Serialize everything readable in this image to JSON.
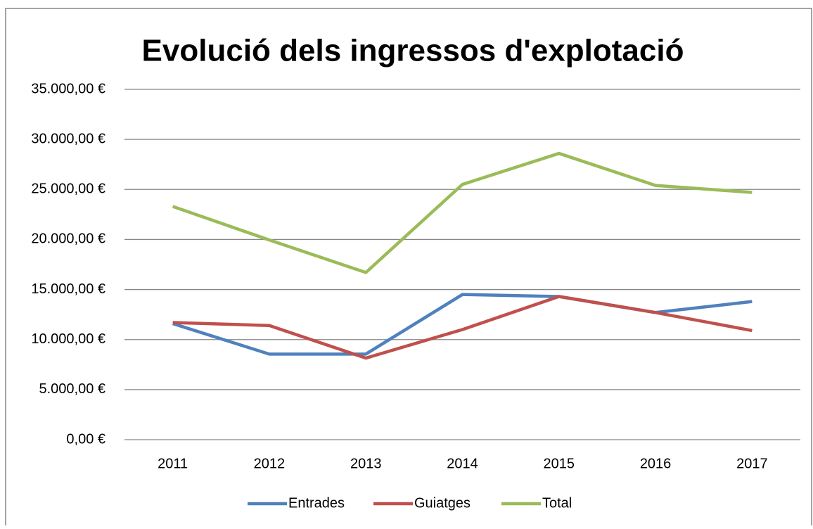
{
  "chart_data": {
    "type": "line",
    "title": "Evolució dels ingressos d'explotació",
    "categories": [
      "2011",
      "2012",
      "2013",
      "2014",
      "2015",
      "2016",
      "2017"
    ],
    "series": [
      {
        "name": "Entrades",
        "color": "#4f81bd",
        "values": [
          11600,
          8550,
          8550,
          14500,
          14300,
          12700,
          13800
        ]
      },
      {
        "name": "Guiatges",
        "color": "#c0504d",
        "values": [
          11700,
          11400,
          8150,
          11000,
          14300,
          12700,
          10900
        ]
      },
      {
        "name": "Total",
        "color": "#9bbb59",
        "values": [
          23300,
          19950,
          16700,
          25500,
          28600,
          25400,
          24700
        ]
      }
    ],
    "ylim": [
      0,
      35000
    ],
    "yticks": [
      {
        "value": 0,
        "label": "0,00 €"
      },
      {
        "value": 5000,
        "label": "5.000,00 €"
      },
      {
        "value": 10000,
        "label": "10.000,00 €"
      },
      {
        "value": 15000,
        "label": "15.000,00 €"
      },
      {
        "value": 20000,
        "label": "20.000,00 €"
      },
      {
        "value": 25000,
        "label": "25.000,00 €"
      },
      {
        "value": 30000,
        "label": "30.000,00 €"
      },
      {
        "value": 35000,
        "label": "35.000,00 €"
      }
    ],
    "grid": true,
    "legend": "bottom"
  }
}
